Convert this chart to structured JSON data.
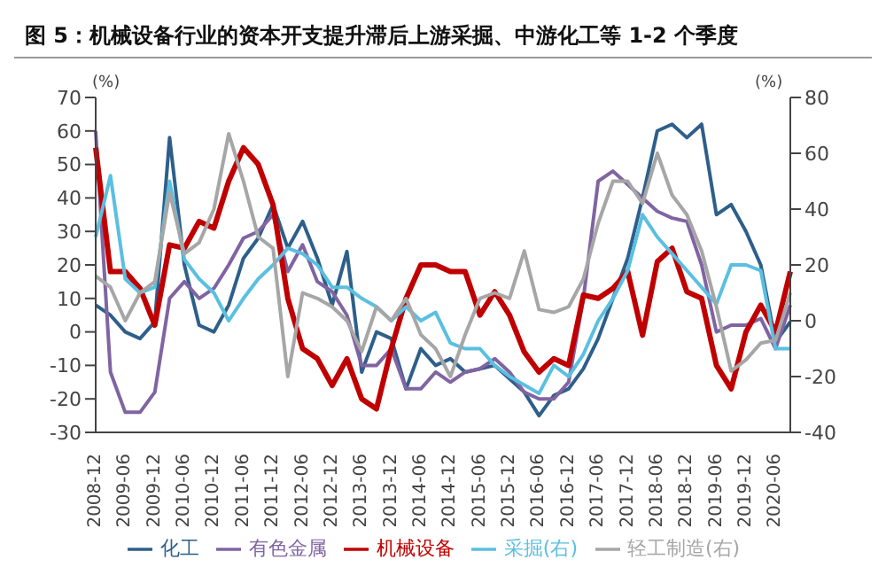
{
  "chart_data": {
    "type": "line",
    "title": "图 5：机械设备行业的资本开支提升滞后上游采掘、中游化工等 1-2 个季度",
    "ylabel": "(%)",
    "y2label": "(%)",
    "categories": [
      "2008-12",
      null,
      "2009-06",
      null,
      "2009-12",
      null,
      "2010-06",
      null,
      "2010-12",
      null,
      "2011-06",
      null,
      "2011-12",
      null,
      "2012-06",
      null,
      "2012-12",
      null,
      "2013-06",
      null,
      "2013-12",
      null,
      "2014-06",
      null,
      "2014-12",
      null,
      "2015-06",
      null,
      "2015-12",
      null,
      "2016-06",
      null,
      "2016-12",
      null,
      "2017-06",
      null,
      "2017-12",
      null,
      "2018-06",
      null,
      "2018-12",
      null,
      "2019-06",
      null,
      "2019-12",
      null,
      "2020-06",
      null
    ],
    "ylim": [
      -30,
      70
    ],
    "yticks": [
      -30,
      -20,
      -10,
      0,
      10,
      20,
      30,
      40,
      50,
      60,
      70
    ],
    "y2lim": [
      -40,
      80
    ],
    "y2ticks": [
      -40,
      -20,
      0,
      20,
      40,
      60,
      80
    ],
    "legend": "bottom",
    "marker": "none",
    "line_style": "solid",
    "series": [
      {
        "name": "化工",
        "color": "#2e5f8a",
        "values": [
          8,
          5,
          0,
          -2,
          3,
          58,
          20,
          2,
          0,
          8,
          22,
          28,
          38,
          25,
          33,
          22,
          8,
          24,
          -12,
          0,
          -2,
          -17,
          -5,
          -10,
          -8,
          -12,
          -11,
          -10,
          -14,
          -18,
          -25,
          -19,
          -17,
          -11,
          -2,
          10,
          22,
          40,
          60,
          62,
          58,
          62,
          35,
          38,
          30,
          20,
          -3,
          3
        ]
      },
      {
        "name": "有色金属",
        "color": "#8064a2",
        "values": [
          60,
          -12,
          -24,
          -24,
          -18,
          10,
          15,
          10,
          13,
          20,
          28,
          30,
          35,
          18,
          26,
          15,
          12,
          5,
          -10,
          -10,
          -5,
          -17,
          -17,
          -12,
          -15,
          -12,
          -11,
          -8,
          -12,
          -18,
          -20,
          -20,
          -15,
          10,
          45,
          48,
          44,
          40,
          36,
          34,
          33,
          20,
          0,
          2,
          2,
          4,
          -5,
          8
        ]
      },
      {
        "name": "机械设备",
        "color": "#c00000",
        "values": [
          55,
          18,
          18,
          13,
          2,
          26,
          25,
          33,
          31,
          45,
          55,
          50,
          38,
          10,
          -5,
          -8,
          -16,
          -8,
          -20,
          -23,
          -5,
          10,
          20,
          20,
          18,
          18,
          5,
          12,
          5,
          -6,
          -12,
          -8,
          -10,
          11,
          10,
          13,
          18,
          -1,
          21,
          25,
          12,
          10,
          -10,
          -17,
          0,
          8,
          0,
          18
        ]
      },
      {
        "name": "采掘(右)",
        "color": "#5bbfe0",
        "axis": "y2",
        "values": [
          30,
          52,
          15,
          10,
          12,
          50,
          22,
          15,
          10,
          0,
          8,
          15,
          20,
          26,
          24,
          20,
          12,
          12,
          8,
          5,
          0,
          5,
          0,
          3,
          -8,
          -10,
          -10,
          -16,
          -20,
          -23,
          -26,
          -16,
          -20,
          -12,
          0,
          8,
          18,
          38,
          30,
          24,
          18,
          12,
          6,
          20,
          20,
          18,
          -10,
          -10
        ]
      },
      {
        "name": "轻工制造(右)",
        "color": "#a6a6a6",
        "axis": "y2",
        "values": [
          16,
          12,
          0,
          10,
          14,
          46,
          24,
          28,
          40,
          67,
          50,
          30,
          26,
          -20,
          10,
          8,
          5,
          0,
          -11,
          5,
          0,
          8,
          -5,
          -10,
          -20,
          -5,
          8,
          10,
          8,
          25,
          4,
          3,
          5,
          15,
          35,
          50,
          50,
          42,
          60,
          45,
          38,
          25,
          5,
          -18,
          -14,
          -8,
          -7,
          10
        ]
      }
    ]
  }
}
